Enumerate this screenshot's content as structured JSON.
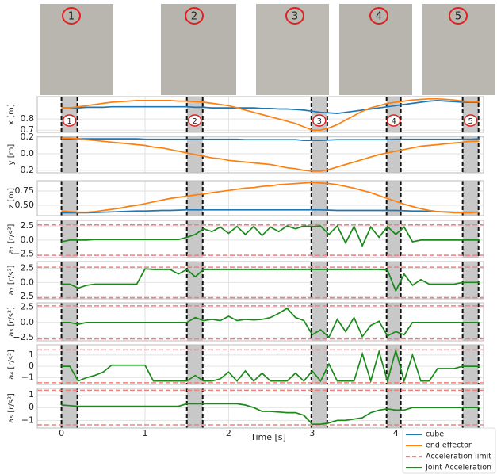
{
  "photo_labels": [
    "1",
    "2",
    "3",
    "4",
    "5"
  ],
  "chart_data": {
    "type": "line",
    "xlabel": "Time [s]",
    "xlim": [
      -0.29,
      5.05
    ],
    "xticks": [
      0,
      1,
      2,
      3,
      4
    ],
    "x": [
      0,
      0.1,
      0.2,
      0.3,
      0.4,
      0.5,
      0.6,
      0.7,
      0.8,
      0.9,
      1,
      1.1,
      1.2,
      1.3,
      1.4,
      1.5,
      1.6,
      1.7,
      1.8,
      1.9,
      2,
      2.1,
      2.2,
      2.3,
      2.4,
      2.5,
      2.6,
      2.7,
      2.8,
      2.9,
      3,
      3.1,
      3.2,
      3.3,
      3.4,
      3.5,
      3.6,
      3.7,
      3.8,
      3.9,
      4,
      4.1,
      4.2,
      4.3,
      4.4,
      4.5,
      4.6,
      4.7,
      4.8,
      4.9,
      5
    ],
    "spans": [
      [
        0,
        0.19
      ],
      [
        1.5,
        1.69
      ],
      [
        2.99,
        3.18
      ],
      [
        3.89,
        4.06
      ],
      [
        4.8,
        4.99
      ]
    ],
    "span_labels": [
      "1",
      "2",
      "3",
      "4",
      "5"
    ],
    "legend": [
      {
        "name": "cube",
        "color": "#1f77b4",
        "dashed": false
      },
      {
        "name": "end effector",
        "color": "#ff7f0e",
        "dashed": false
      },
      {
        "name": "Acceleration limit",
        "color": "#f08080",
        "dashed": true
      },
      {
        "name": "Joint Acceleration",
        "color": "#1a8a1a",
        "dashed": false
      }
    ],
    "panels": [
      {
        "ylabel": "x [m]",
        "ylim": [
          0.68,
          1.0
        ],
        "yticks": [
          0.7,
          0.8
        ],
        "limits": [],
        "series": [
          {
            "color": "#1f77b4",
            "values": [
              0.9,
              0.9,
              0.9,
              0.905,
              0.905,
              0.905,
              0.91,
              0.91,
              0.91,
              0.91,
              0.91,
              0.91,
              0.91,
              0.91,
              0.91,
              0.91,
              0.905,
              0.905,
              0.9,
              0.9,
              0.9,
              0.9,
              0.9,
              0.9,
              0.895,
              0.895,
              0.89,
              0.89,
              0.885,
              0.88,
              0.87,
              0.86,
              0.855,
              0.85,
              0.86,
              0.87,
              0.88,
              0.89,
              0.9,
              0.91,
              0.92,
              0.93,
              0.94,
              0.95,
              0.96,
              0.965,
              0.96,
              0.955,
              0.95,
              0.95,
              0.95
            ]
          },
          {
            "color": "#ff7f0e",
            "values": [
              0.9,
              0.9,
              0.91,
              0.92,
              0.93,
              0.94,
              0.95,
              0.955,
              0.96,
              0.965,
              0.965,
              0.965,
              0.965,
              0.965,
              0.96,
              0.96,
              0.955,
              0.95,
              0.94,
              0.93,
              0.92,
              0.9,
              0.88,
              0.86,
              0.84,
              0.82,
              0.8,
              0.78,
              0.76,
              0.73,
              0.7,
              0.7,
              0.72,
              0.75,
              0.79,
              0.83,
              0.87,
              0.9,
              0.92,
              0.94,
              0.95,
              0.96,
              0.97,
              0.975,
              0.98,
              0.98,
              0.975,
              0.97,
              0.96,
              0.955,
              0.955
            ]
          }
        ]
      },
      {
        "ylabel": "y [m]",
        "ylim": [
          -0.23,
          0.21
        ],
        "yticks": [
          {
            "value": -0.2,
            "label": "−0.2"
          },
          {
            "value": 0,
            "label": "0.0"
          },
          0.2
        ],
        "limits": [],
        "series": [
          {
            "color": "#1f77b4",
            "values": [
              0.18,
              0.18,
              0.18,
              0.18,
              0.18,
              0.18,
              0.18,
              0.18,
              0.18,
              0.18,
              0.175,
              0.175,
              0.175,
              0.175,
              0.175,
              0.175,
              0.175,
              0.175,
              0.175,
              0.175,
              0.175,
              0.175,
              0.17,
              0.17,
              0.17,
              0.17,
              0.17,
              0.17,
              0.17,
              0.16,
              0.16,
              0.16,
              0.165,
              0.17,
              0.17,
              0.17,
              0.17,
              0.17,
              0.17,
              0.17,
              0.175,
              0.175,
              0.175,
              0.175,
              0.175,
              0.175,
              0.175,
              0.175,
              0.175,
              0.175,
              0.18
            ]
          },
          {
            "color": "#ff7f0e",
            "values": [
              0.19,
              0.19,
              0.18,
              0.17,
              0.16,
              0.15,
              0.14,
              0.13,
              0.12,
              0.11,
              0.1,
              0.08,
              0.07,
              0.05,
              0.03,
              0.01,
              -0.01,
              -0.03,
              -0.05,
              -0.06,
              -0.08,
              -0.09,
              -0.1,
              -0.11,
              -0.12,
              -0.13,
              -0.15,
              -0.17,
              -0.18,
              -0.2,
              -0.21,
              -0.21,
              -0.19,
              -0.16,
              -0.13,
              -0.1,
              -0.07,
              -0.04,
              -0.01,
              0.01,
              0.03,
              0.05,
              0.07,
              0.09,
              0.1,
              0.11,
              0.12,
              0.13,
              0.14,
              0.15,
              0.15
            ]
          }
        ]
      },
      {
        "ylabel": "z [m]",
        "ylim": [
          0.32,
          0.93
        ],
        "yticks": [
          {
            "value": 0.5,
            "label": "0.50"
          },
          0.75
        ],
        "limits": [],
        "series": [
          {
            "color": "#1f77b4",
            "values": [
              0.37,
              0.37,
              0.37,
              0.37,
              0.375,
              0.38,
              0.385,
              0.39,
              0.395,
              0.4,
              0.4,
              0.405,
              0.41,
              0.41,
              0.415,
              0.42,
              0.42,
              0.42,
              0.42,
              0.42,
              0.42,
              0.42,
              0.42,
              0.42,
              0.42,
              0.42,
              0.42,
              0.42,
              0.42,
              0.42,
              0.42,
              0.42,
              0.415,
              0.41,
              0.41,
              0.41,
              0.41,
              0.41,
              0.41,
              0.41,
              0.41,
              0.405,
              0.4,
              0.4,
              0.395,
              0.39,
              0.385,
              0.38,
              0.38,
              0.38,
              0.38
            ]
          },
          {
            "color": "#ff7f0e",
            "values": [
              0.4,
              0.39,
              0.38,
              0.38,
              0.39,
              0.41,
              0.43,
              0.45,
              0.48,
              0.5,
              0.53,
              0.56,
              0.59,
              0.62,
              0.64,
              0.66,
              0.68,
              0.7,
              0.72,
              0.74,
              0.76,
              0.78,
              0.8,
              0.81,
              0.83,
              0.84,
              0.86,
              0.87,
              0.88,
              0.89,
              0.9,
              0.89,
              0.88,
              0.86,
              0.83,
              0.8,
              0.76,
              0.72,
              0.67,
              0.62,
              0.57,
              0.52,
              0.48,
              0.44,
              0.41,
              0.39,
              0.38,
              0.37,
              0.37,
              0.37,
              0.38
            ]
          }
        ]
      },
      {
        "ylabel": "a₁ [r/s²]",
        "ylim": [
          -3.1,
          3.5
        ],
        "yticks": [
          {
            "value": -2.5,
            "label": "−2.5"
          },
          {
            "value": 0,
            "label": "0.0"
          },
          2.5
        ],
        "limits": [
          2.7,
          -2.7
        ],
        "series": [
          {
            "color": "#1a8a1a",
            "values": [
              -0.3,
              0,
              0,
              0,
              0.1,
              0.1,
              0.1,
              0.1,
              0.1,
              0.1,
              0.1,
              0.1,
              0.1,
              0.1,
              0.1,
              0.5,
              1.0,
              2.0,
              1.5,
              2.3,
              1.2,
              2.4,
              1.0,
              2.4,
              0.8,
              2.3,
              1.5,
              2.5,
              2.0,
              2.5,
              2.4,
              2.5,
              1.0,
              2.5,
              -0.5,
              2.4,
              -1.0,
              2.3,
              0.5,
              2.4,
              1.0,
              2.3,
              -0.3,
              0,
              0,
              0,
              0,
              0,
              0,
              0,
              0
            ]
          }
        ]
      },
      {
        "ylabel": "a₂ [r/s²]",
        "ylim": [
          -2.9,
          3.7
        ],
        "yticks": [
          {
            "value": -2.5,
            "label": "−2.5"
          },
          {
            "value": 0,
            "label": "0.0"
          },
          2.5
        ],
        "limits": [
          2.7,
          -2.7
        ],
        "series": [
          {
            "color": "#1a8a1a",
            "values": [
              -0.3,
              -0.3,
              -1.0,
              -0.5,
              -0.3,
              -0.3,
              -0.3,
              -0.3,
              -0.3,
              -0.3,
              2.4,
              2.3,
              2.3,
              2.3,
              1.5,
              2.3,
              1.0,
              2.3,
              2.3,
              2.3,
              2.3,
              2.3,
              2.3,
              2.3,
              2.3,
              2.3,
              2.3,
              2.3,
              2.3,
              2.3,
              2.3,
              2.3,
              2.3,
              2.3,
              2.3,
              2.3,
              2.3,
              2.3,
              2.3,
              2.2,
              -1.5,
              1.5,
              -0.5,
              0.5,
              -0.3,
              -0.3,
              -0.3,
              -0.3,
              0,
              0,
              0
            ]
          }
        ]
      },
      {
        "ylabel": "a₃ [r/s²]",
        "ylim": [
          -3.0,
          3.2
        ],
        "yticks": [
          {
            "value": -2.5,
            "label": "−2.5"
          },
          {
            "value": 0,
            "label": "0.0"
          },
          2.5
        ],
        "limits": [
          2.7,
          -2.7
        ],
        "series": [
          {
            "color": "#1a8a1a",
            "values": [
              0,
              0,
              -0.3,
              0,
              0,
              0,
              0,
              0,
              0,
              0,
              0,
              0,
              0,
              0,
              0,
              0,
              0.8,
              0.3,
              0.5,
              0.3,
              1.0,
              0.3,
              0.5,
              0.4,
              0.5,
              0.8,
              1.5,
              2.3,
              0.8,
              0.3,
              -2.0,
              -1.2,
              -2.4,
              0.5,
              -1.5,
              0.8,
              -2.3,
              -0.5,
              0.2,
              -2.2,
              -1.5,
              -2.0,
              0,
              0,
              0,
              0,
              0,
              0,
              0,
              0,
              0
            ]
          }
        ]
      },
      {
        "ylabel": "a₄ [r/s²]",
        "ylim": [
          -1.6,
          1.9
        ],
        "yticks": [
          {
            "value": -1,
            "label": "−1"
          },
          0,
          1
        ],
        "limits": [
          1.45,
          -1.45
        ],
        "series": [
          {
            "color": "#1a8a1a",
            "values": [
              0,
              0,
              -1.3,
              -1.0,
              -0.8,
              -0.5,
              0.1,
              0.1,
              0.1,
              0.1,
              0.1,
              -1.3,
              -1.3,
              -1.3,
              -1.3,
              -1.3,
              -0.8,
              -1.3,
              -1.3,
              -1.1,
              -0.5,
              -1.3,
              -0.4,
              -1.3,
              -0.6,
              -1.3,
              -1.3,
              -1.3,
              -0.6,
              -1.3,
              -0.4,
              -1.3,
              0.2,
              -1.3,
              -1.3,
              -1.3,
              1.1,
              -1.3,
              1.3,
              -1.3,
              1.4,
              -1.3,
              1.0,
              -1.3,
              -1.3,
              -0.2,
              -0.2,
              -0.2,
              0,
              0,
              0
            ]
          }
        ]
      },
      {
        "ylabel": "a₅ [r/s²]",
        "ylim": [
          -1.6,
          1.5
        ],
        "yticks": [
          {
            "value": -1,
            "label": "−1"
          },
          0,
          1
        ],
        "limits": [
          1.35,
          -1.35
        ],
        "series": [
          {
            "color": "#1a8a1a",
            "values": [
              0.2,
              0.15,
              0.1,
              0.1,
              0.1,
              0.1,
              0.1,
              0.1,
              0.1,
              0.1,
              0.1,
              0.1,
              0.1,
              0.1,
              0.1,
              0.3,
              0.3,
              0.3,
              0.3,
              0.3,
              0.3,
              0.3,
              0.2,
              0,
              -0.3,
              -0.3,
              -0.35,
              -0.4,
              -0.4,
              -0.6,
              -1.3,
              -1.3,
              -1.2,
              -1.0,
              -1.0,
              -0.9,
              -0.8,
              -0.4,
              -0.2,
              -0.1,
              -0.2,
              -0.2,
              0,
              0,
              0,
              0,
              0,
              0,
              0,
              0,
              0
            ]
          }
        ]
      }
    ]
  }
}
